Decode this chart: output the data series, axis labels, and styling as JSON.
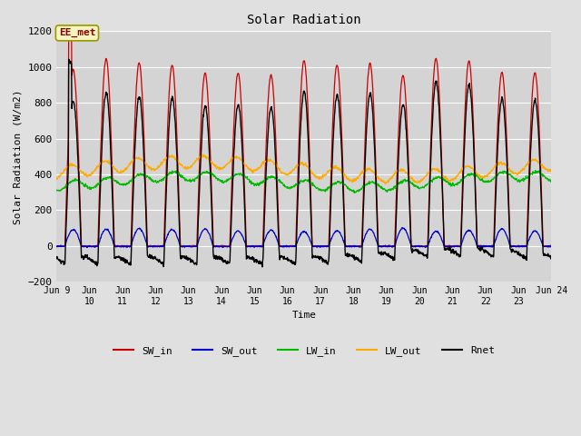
{
  "title": "Solar Radiation",
  "ylabel": "Solar Radiation (W/m2)",
  "xlabel": "Time",
  "ylim": [
    -200,
    1200
  ],
  "annotation_text": "EE_met",
  "background_color": "#e0e0e0",
  "plot_bg_color": "#d4d4d4",
  "grid_color": "white",
  "x_tick_labels": [
    "Jun 9",
    "Jun\n10",
    "Jun\n11",
    "Jun\n12",
    "Jun\n13",
    "Jun\n14",
    "Jun\n15",
    "Jun\n16",
    "Jun\n17",
    "Jun\n18",
    "Jun\n19",
    "Jun\n20",
    "Jun\n21",
    "Jun\n22",
    "Jun\n23",
    "Jun 24"
  ],
  "sw_in_color": "#cc0000",
  "sw_out_color": "#0000cc",
  "lw_in_color": "#00bb00",
  "lw_out_color": "#ffaa00",
  "rnet_color": "#000000",
  "n_days": 15,
  "points_per_day": 96
}
